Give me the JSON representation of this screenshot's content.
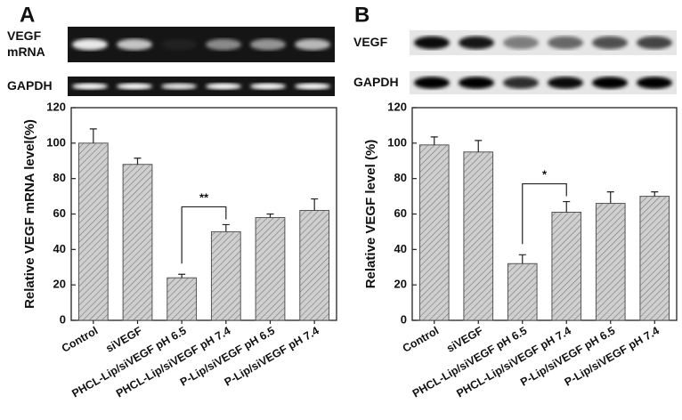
{
  "chart_data": [
    {
      "type": "bar",
      "panel": "A",
      "y_label": "Relative VEGF mRNA level(%)",
      "blots": [
        {
          "label": [
            "VEGF",
            "mRNA"
          ]
        },
        {
          "label": [
            "GAPDH"
          ]
        }
      ],
      "categories": [
        "Control",
        "siVEGF",
        "PHCL-Lip/siVEGF pH 6.5",
        "PHCL-Lip/siVEGF pH 7.4",
        "P-Lip/siVEGF pH 6.5",
        "P-Lip/siVEGF pH 7.4"
      ],
      "values": [
        100,
        88,
        24,
        50,
        58,
        62
      ],
      "errors": [
        8,
        3.5,
        2,
        4,
        2,
        6.5
      ],
      "color": "#c8c8c8",
      "ylim": [
        0,
        120
      ],
      "yticks": [
        0,
        20,
        40,
        60,
        80,
        100,
        120
      ],
      "significance": {
        "from": 2,
        "to": 3,
        "label": "**"
      }
    },
    {
      "type": "bar",
      "panel": "B",
      "y_label": "Relative VEGF level (%)",
      "blots": [
        {
          "label": [
            "VEGF"
          ]
        },
        {
          "label": [
            "GAPDH"
          ]
        }
      ],
      "categories": [
        "Control",
        "siVEGF",
        "PHCL-Lip/siVEGF pH 6.5",
        "PHCL-Lip/siVEGF pH 7.4",
        "P-Lip/siVEGF pH 6.5",
        "P-Lip/siVEGF pH 7.4"
      ],
      "values": [
        99,
        95,
        32,
        61,
        66,
        70
      ],
      "errors": [
        4.5,
        6.5,
        5,
        6,
        6.5,
        2.5
      ],
      "color": "#c8c8c8",
      "ylim": [
        0,
        120
      ],
      "yticks": [
        0,
        20,
        40,
        60,
        80,
        100,
        120
      ],
      "significance": {
        "from": 2,
        "to": 3,
        "label": "*"
      }
    }
  ]
}
